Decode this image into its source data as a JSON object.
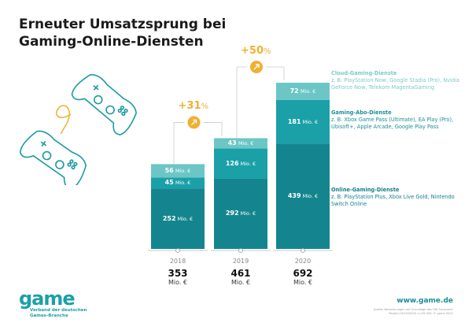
{
  "title_line1": "Erneuter Umsatzsprung bei",
  "title_line2": "Gaming-Online-Diensten",
  "chart_data": {
    "type": "bar",
    "stacked": true,
    "categories": [
      "2018",
      "2019",
      "2020"
    ],
    "unit": "Mio. €",
    "series": [
      {
        "name": "Online-Gaming-Dienste",
        "description": "z. B. PlayStation Plus, Xbox Live Gold, Nintendo Switch Online",
        "color": "#14858f",
        "values": [
          252,
          292,
          439
        ]
      },
      {
        "name": "Gaming-Abo-Dienste",
        "description": "z. B. Xbox Game Pass (Ultimate), EA Play (Pro), Ubisoft+, Apple Arcade, Google Play Pass",
        "color": "#1ba0a8",
        "values": [
          45,
          126,
          181
        ]
      },
      {
        "name": "Cloud-Gaming-Dienste",
        "description": "z. B. PlayStation Now, Google Stadia (Pro), Nvidia GeForce Now, Telekom MagentaGaming",
        "color": "#6cc6c6",
        "values": [
          56,
          43,
          72
        ]
      }
    ],
    "totals": [
      "353",
      "461",
      "692"
    ],
    "total_unit": "Mio. €",
    "growth": [
      {
        "label": "+31",
        "pct": "%"
      },
      {
        "label": "+50",
        "pct": "%"
      }
    ],
    "accent": "#f0b030"
  },
  "footer": {
    "logo": "game",
    "logo_sub1": "Verband der deutschen",
    "logo_sub2": "Games-Branche",
    "url": "www.game.de",
    "source1": "Quelle: Berechnungen auf Grundlage des GfK Consumer",
    "source2": "Panels (2019/2020) n=25.000; © game 2021"
  }
}
